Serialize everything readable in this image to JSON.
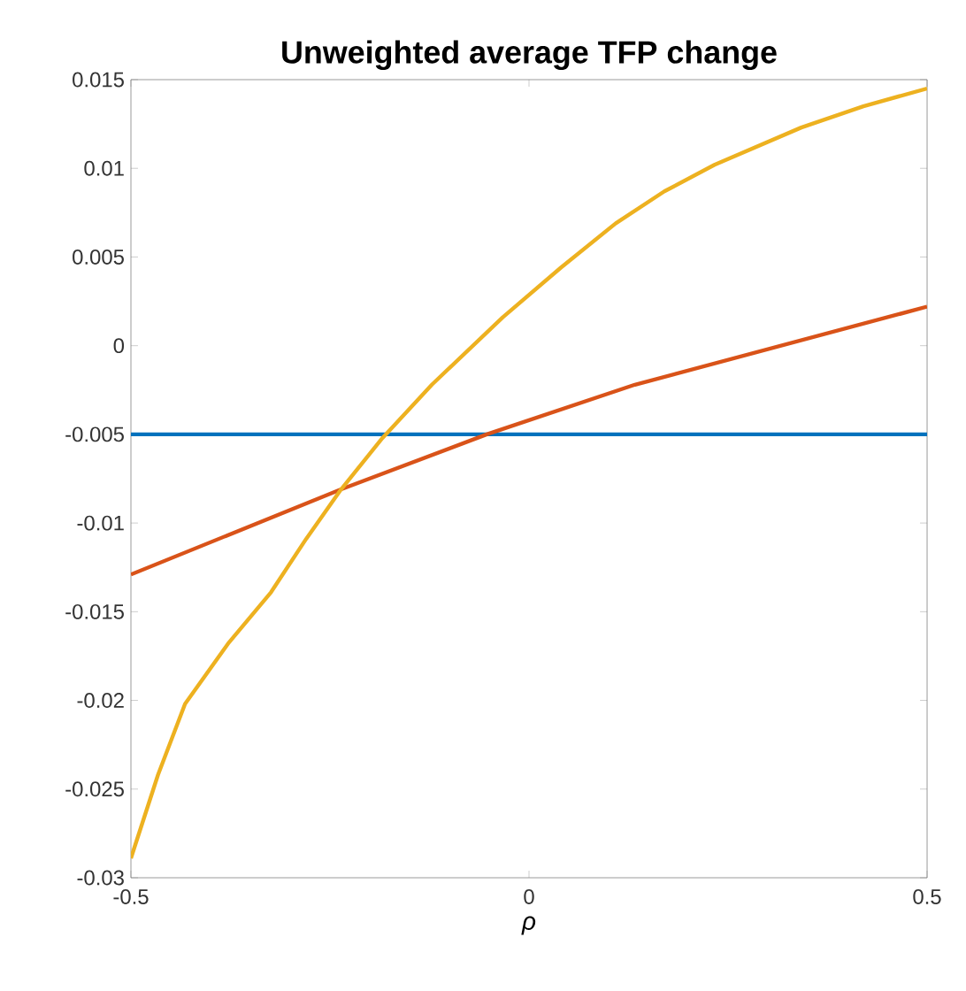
{
  "chart_data": {
    "type": "line",
    "title": "Unweighted average TFP change",
    "xlabel": "ρ",
    "xlim": [
      -0.5,
      0.5
    ],
    "xticks": [
      -0.5,
      0,
      0.5
    ],
    "ylim": [
      -0.03,
      0.015
    ],
    "yticks": [
      -0.03,
      -0.025,
      -0.02,
      -0.015,
      -0.01,
      -0.005,
      0,
      0.005,
      0.01,
      0.015
    ],
    "grid": false,
    "series": [
      {
        "color": "#0072bd",
        "x": [
          -0.5,
          0.5
        ],
        "values": [
          -0.005,
          -0.005
        ]
      },
      {
        "color": "#d95319",
        "x": [
          -0.5,
          -0.236,
          -0.053,
          0.133,
          0.5
        ],
        "values": [
          -0.0129,
          -0.0081,
          -0.005,
          -0.0022,
          0.0022
        ]
      },
      {
        "color": "#edb120",
        "x": [
          -0.5,
          -0.466,
          -0.432,
          -0.378,
          -0.324,
          -0.28,
          -0.236,
          -0.184,
          -0.122,
          -0.033,
          0.04,
          0.109,
          0.17,
          0.233,
          0.342,
          0.42,
          0.5
        ],
        "values": [
          -0.0289,
          -0.0242,
          -0.0202,
          -0.0168,
          -0.0139,
          -0.0109,
          -0.0081,
          -0.0052,
          -0.0022,
          0.0016,
          0.0044,
          0.0069,
          0.0087,
          0.0102,
          0.0123,
          0.0135,
          0.0145
        ]
      }
    ]
  }
}
